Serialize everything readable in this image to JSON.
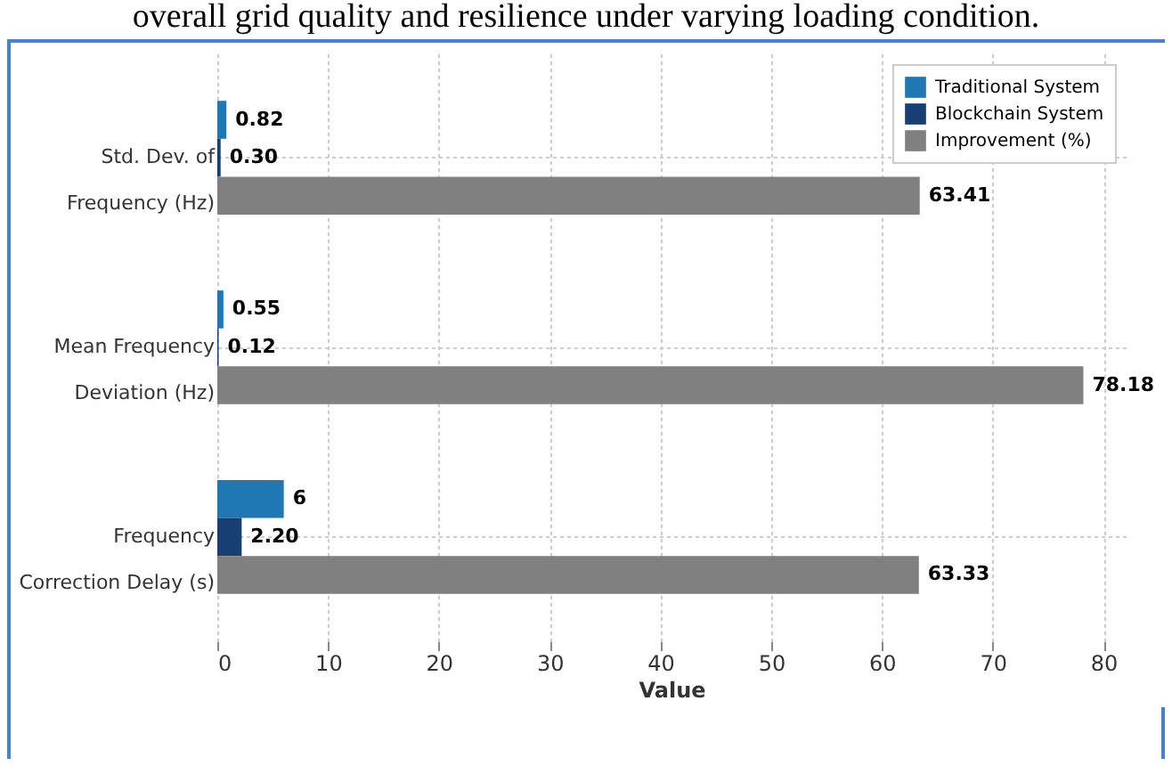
{
  "chart_data": {
    "type": "bar",
    "orientation": "horizontal",
    "categories": [
      "Std. Dev. of Frequency (Hz)",
      "Mean Frequency Deviation (Hz)",
      "Frequency Correction Delay (s)"
    ],
    "series": [
      {
        "name": "Traditional System",
        "color": "#1f77b4",
        "values": [
          0.82,
          0.55,
          6
        ],
        "value_labels": [
          "0.82",
          "0.55",
          "6"
        ]
      },
      {
        "name": "Blockchain System",
        "color": "#173f73",
        "values": [
          0.3,
          0.12,
          2.2
        ],
        "value_labels": [
          "0.30",
          "0.12",
          "2.20"
        ]
      },
      {
        "name": "Improvement (%)",
        "color": "#808080",
        "values": [
          63.41,
          78.18,
          63.33
        ],
        "value_labels": [
          "63.41",
          "78.18",
          "63.33"
        ]
      }
    ],
    "xlabel": "Value",
    "xlim": [
      0,
      82
    ],
    "xticks": [
      0,
      10,
      20,
      30,
      40,
      50,
      60,
      70,
      80
    ],
    "grid": true,
    "legend": "top right",
    "annotations": [
      "overall grid quality and resilience under varying loading condition."
    ]
  }
}
